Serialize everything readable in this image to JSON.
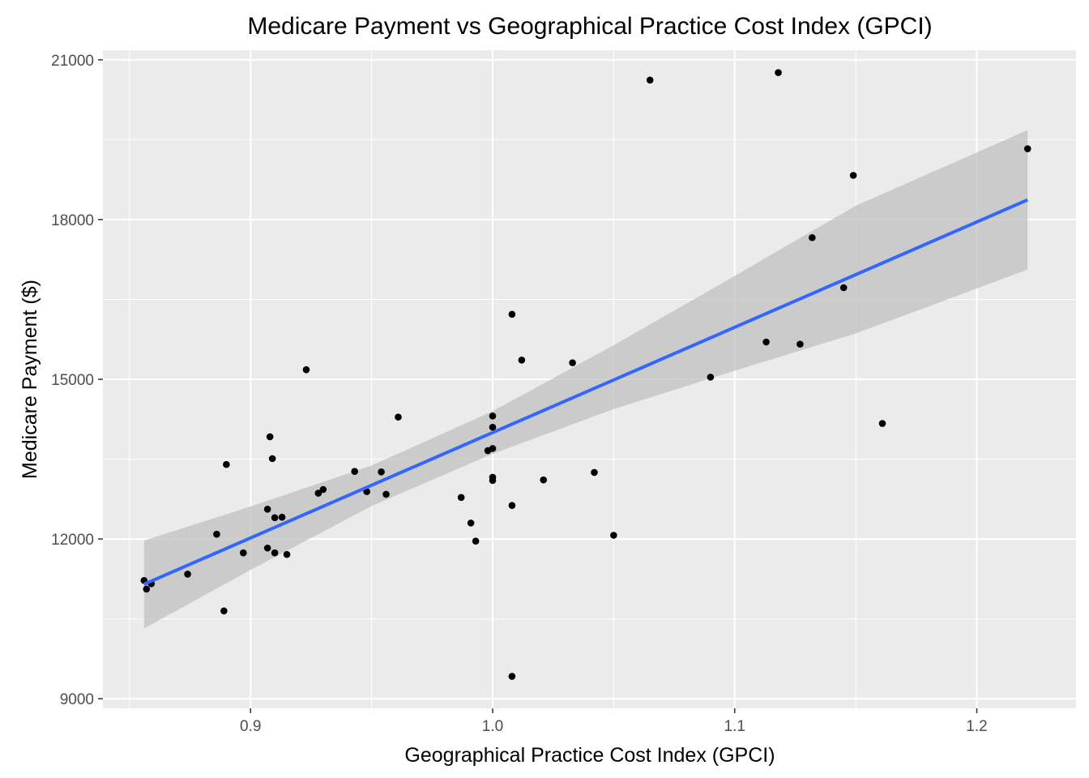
{
  "chart_data": {
    "type": "scatter",
    "title": "Medicare Payment vs Geographical Practice Cost Index (GPCI)",
    "xlabel": "Geographical Practice Cost Index (GPCI)",
    "ylabel": "Medicare Payment ($)",
    "xlim": [
      0.839,
      1.241
    ],
    "ylim": [
      8820,
      21180
    ],
    "x_ticks": [
      0.9,
      1.0,
      1.1,
      1.2
    ],
    "x_tick_labels": [
      "0.9",
      "1.0",
      "1.1",
      "1.2"
    ],
    "y_ticks": [
      9000,
      12000,
      15000,
      18000,
      21000
    ],
    "y_tick_labels": [
      "9000",
      "12000",
      "15000",
      "18000",
      "21000"
    ],
    "grid": true,
    "legend": "none",
    "colors": {
      "panel_background": "#ebebeb",
      "grid": "#ffffff",
      "points": "#000000",
      "fit_line": "#3366ff",
      "confidence_band": "#c0c0c0"
    },
    "points": [
      {
        "x": 0.856,
        "y": 11220
      },
      {
        "x": 0.857,
        "y": 11060
      },
      {
        "x": 0.859,
        "y": 11160
      },
      {
        "x": 0.874,
        "y": 11340
      },
      {
        "x": 0.886,
        "y": 12090
      },
      {
        "x": 0.889,
        "y": 10650
      },
      {
        "x": 0.89,
        "y": 13400
      },
      {
        "x": 0.897,
        "y": 11740
      },
      {
        "x": 0.907,
        "y": 12560
      },
      {
        "x": 0.907,
        "y": 11830
      },
      {
        "x": 0.908,
        "y": 13920
      },
      {
        "x": 0.909,
        "y": 13510
      },
      {
        "x": 0.91,
        "y": 12400
      },
      {
        "x": 0.91,
        "y": 11740
      },
      {
        "x": 0.913,
        "y": 12410
      },
      {
        "x": 0.915,
        "y": 11710
      },
      {
        "x": 0.923,
        "y": 15180
      },
      {
        "x": 0.928,
        "y": 12860
      },
      {
        "x": 0.93,
        "y": 12930
      },
      {
        "x": 0.943,
        "y": 13270
      },
      {
        "x": 0.948,
        "y": 12890
      },
      {
        "x": 0.954,
        "y": 13260
      },
      {
        "x": 0.956,
        "y": 12840
      },
      {
        "x": 0.961,
        "y": 14290
      },
      {
        "x": 0.987,
        "y": 12780
      },
      {
        "x": 0.991,
        "y": 12300
      },
      {
        "x": 0.993,
        "y": 11960
      },
      {
        "x": 0.998,
        "y": 13660
      },
      {
        "x": 1.0,
        "y": 14310
      },
      {
        "x": 1.0,
        "y": 14100
      },
      {
        "x": 1.0,
        "y": 13700
      },
      {
        "x": 1.0,
        "y": 13160
      },
      {
        "x": 1.0,
        "y": 13100
      },
      {
        "x": 1.008,
        "y": 16220
      },
      {
        "x": 1.008,
        "y": 12630
      },
      {
        "x": 1.008,
        "y": 9420
      },
      {
        "x": 1.012,
        "y": 15360
      },
      {
        "x": 1.021,
        "y": 13110
      },
      {
        "x": 1.033,
        "y": 15310
      },
      {
        "x": 1.042,
        "y": 13250
      },
      {
        "x": 1.05,
        "y": 12070
      },
      {
        "x": 1.065,
        "y": 20620
      },
      {
        "x": 1.09,
        "y": 15040
      },
      {
        "x": 1.113,
        "y": 15700
      },
      {
        "x": 1.118,
        "y": 20760
      },
      {
        "x": 1.127,
        "y": 15660
      },
      {
        "x": 1.132,
        "y": 17660
      },
      {
        "x": 1.145,
        "y": 16720
      },
      {
        "x": 1.149,
        "y": 18830
      },
      {
        "x": 1.161,
        "y": 14170
      },
      {
        "x": 1.221,
        "y": 19330
      }
    ],
    "regression": {
      "method": "lm",
      "x_range": [
        0.856,
        1.221
      ],
      "line": [
        {
          "x": 0.856,
          "y": 11150
        },
        {
          "x": 1.221,
          "y": 18370
        }
      ],
      "band_upper": [
        {
          "x": 0.856,
          "y": 11970
        },
        {
          "x": 0.9,
          "y": 12610
        },
        {
          "x": 0.95,
          "y": 13380
        },
        {
          "x": 1.0,
          "y": 14400
        },
        {
          "x": 1.05,
          "y": 15640
        },
        {
          "x": 1.1,
          "y": 16940
        },
        {
          "x": 1.15,
          "y": 18260
        },
        {
          "x": 1.221,
          "y": 19680
        }
      ],
      "band_lower": [
        {
          "x": 0.856,
          "y": 10320
        },
        {
          "x": 0.9,
          "y": 11420
        },
        {
          "x": 0.95,
          "y": 12620
        },
        {
          "x": 1.0,
          "y": 13600
        },
        {
          "x": 1.05,
          "y": 14440
        },
        {
          "x": 1.1,
          "y": 15160
        },
        {
          "x": 1.15,
          "y": 15860
        },
        {
          "x": 1.221,
          "y": 17060
        }
      ]
    }
  }
}
